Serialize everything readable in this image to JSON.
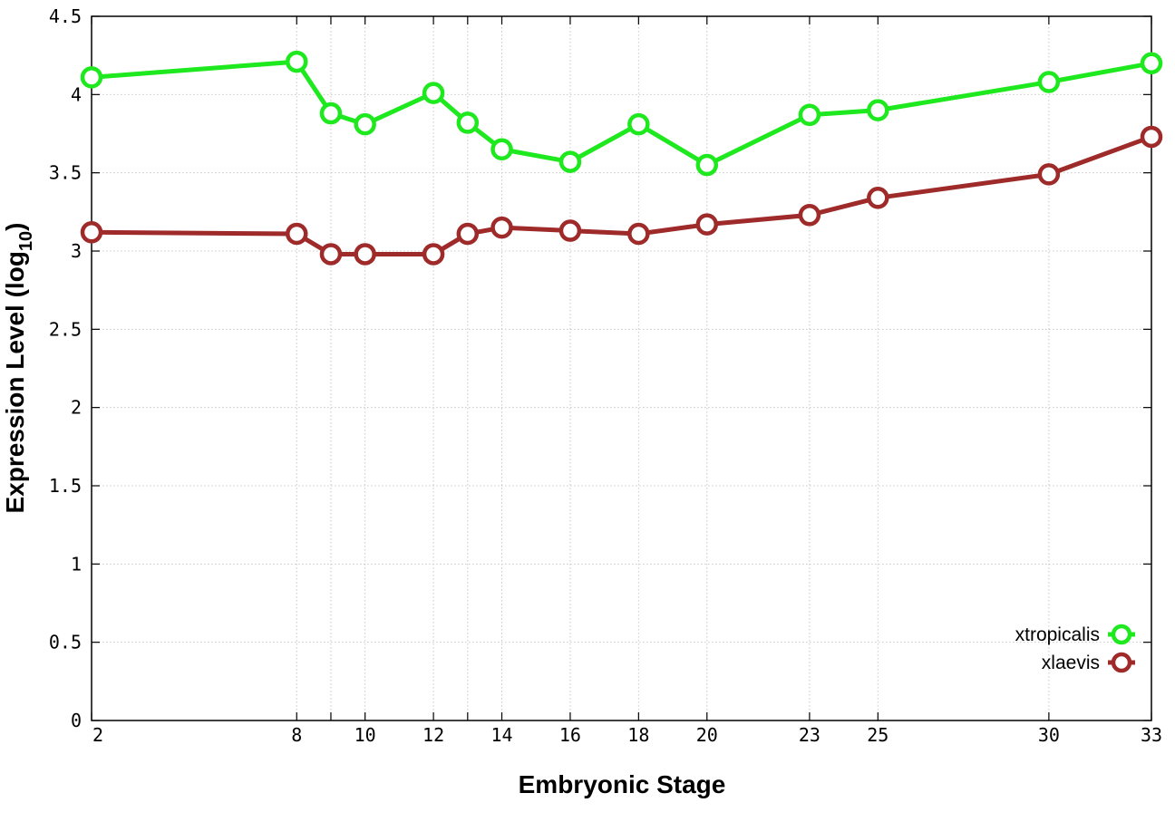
{
  "chart_data": {
    "type": "line",
    "xlabel": "Embryonic Stage",
    "ylabel": "Expression Level (log",
    "ylabel_subscript": "10",
    "ylabel_close": ")",
    "ylim": [
      0,
      4.5
    ],
    "xlim": [
      2,
      33
    ],
    "x": [
      2,
      8,
      9,
      10,
      12,
      13,
      14,
      16,
      18,
      20,
      23,
      25,
      30,
      33
    ],
    "x_tick_labels": [
      "2",
      "8",
      "10",
      "12",
      "14",
      "16",
      "18",
      "20",
      "23",
      "25",
      "30",
      "33"
    ],
    "x_tick_values": [
      2,
      8,
      10,
      12,
      14,
      16,
      18,
      20,
      23,
      25,
      30,
      33
    ],
    "x_grid_values": [
      2,
      8,
      9,
      10,
      12,
      13,
      14,
      16,
      18,
      20,
      23,
      25,
      30,
      33
    ],
    "y_ticks": [
      0,
      0.5,
      1,
      1.5,
      2,
      2.5,
      3,
      3.5,
      4,
      4.5
    ],
    "y_tick_labels": [
      "0",
      "0.5",
      "1",
      "1.5",
      "2",
      "2.5",
      "3",
      "3.5",
      "4",
      "4.5"
    ],
    "grid": true,
    "legend_position": "bottom-right",
    "series": [
      {
        "name": "xtropicalis",
        "color": "#1ee81e",
        "values": [
          4.11,
          4.21,
          3.88,
          3.81,
          4.01,
          3.82,
          3.65,
          3.57,
          3.81,
          3.55,
          3.87,
          3.9,
          4.08,
          4.2
        ]
      },
      {
        "name": "xlaevis",
        "color": "#9e2a2a",
        "values": [
          3.12,
          3.11,
          2.98,
          2.98,
          2.98,
          3.11,
          3.15,
          3.13,
          3.11,
          3.17,
          3.23,
          3.34,
          3.49,
          3.73
        ]
      }
    ]
  }
}
